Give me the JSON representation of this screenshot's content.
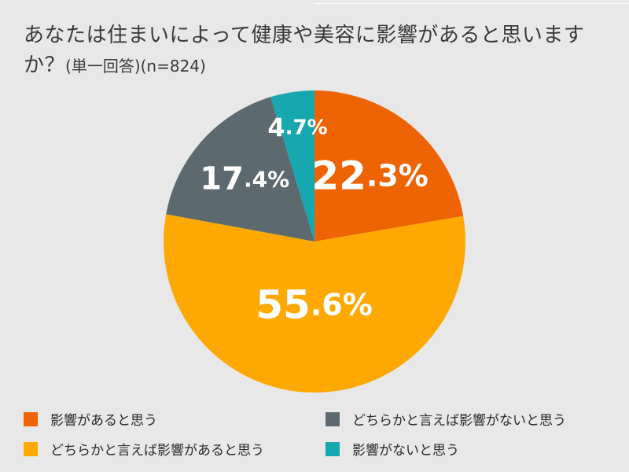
{
  "title": {
    "main": "あなたは住まいによって健康や美容に影響があると思いますか？",
    "sub": "(単一回答)(n=824)"
  },
  "colors": {
    "background": "#e8e8e8",
    "label_text": "#ffffff"
  },
  "chart_data": {
    "type": "pie",
    "title": "あなたは住まいによって健康や美容に影響があると思いますか？(単一回答)(n=824)",
    "unit": "%",
    "start_angle": "12 o'clock",
    "direction": "clockwise",
    "legend_position": "bottom",
    "slices": [
      {
        "label": "影響があると思う",
        "value": 22.3,
        "display": "22.3",
        "color": "#ee6405"
      },
      {
        "label": "どちらかと言えば影響があると思う",
        "value": 55.6,
        "display": "55.6",
        "color": "#fea903"
      },
      {
        "label": "どちらかと言えば影響がないと思う",
        "value": 17.4,
        "display": "17.4",
        "color": "#5c696e"
      },
      {
        "label": "影響がないと思う",
        "value": 4.7,
        "display": "4.7",
        "color": "#17a7ae"
      }
    ]
  },
  "legend": [
    {
      "label": "影響があると思う",
      "color": "#ee6405"
    },
    {
      "label": "どちらかと言えば影響がないと思う",
      "color": "#5c696e"
    },
    {
      "label": "どちらかと言えば影響があると思う",
      "color": "#fea903"
    },
    {
      "label": "影響がないと思う",
      "color": "#17a7ae"
    }
  ]
}
